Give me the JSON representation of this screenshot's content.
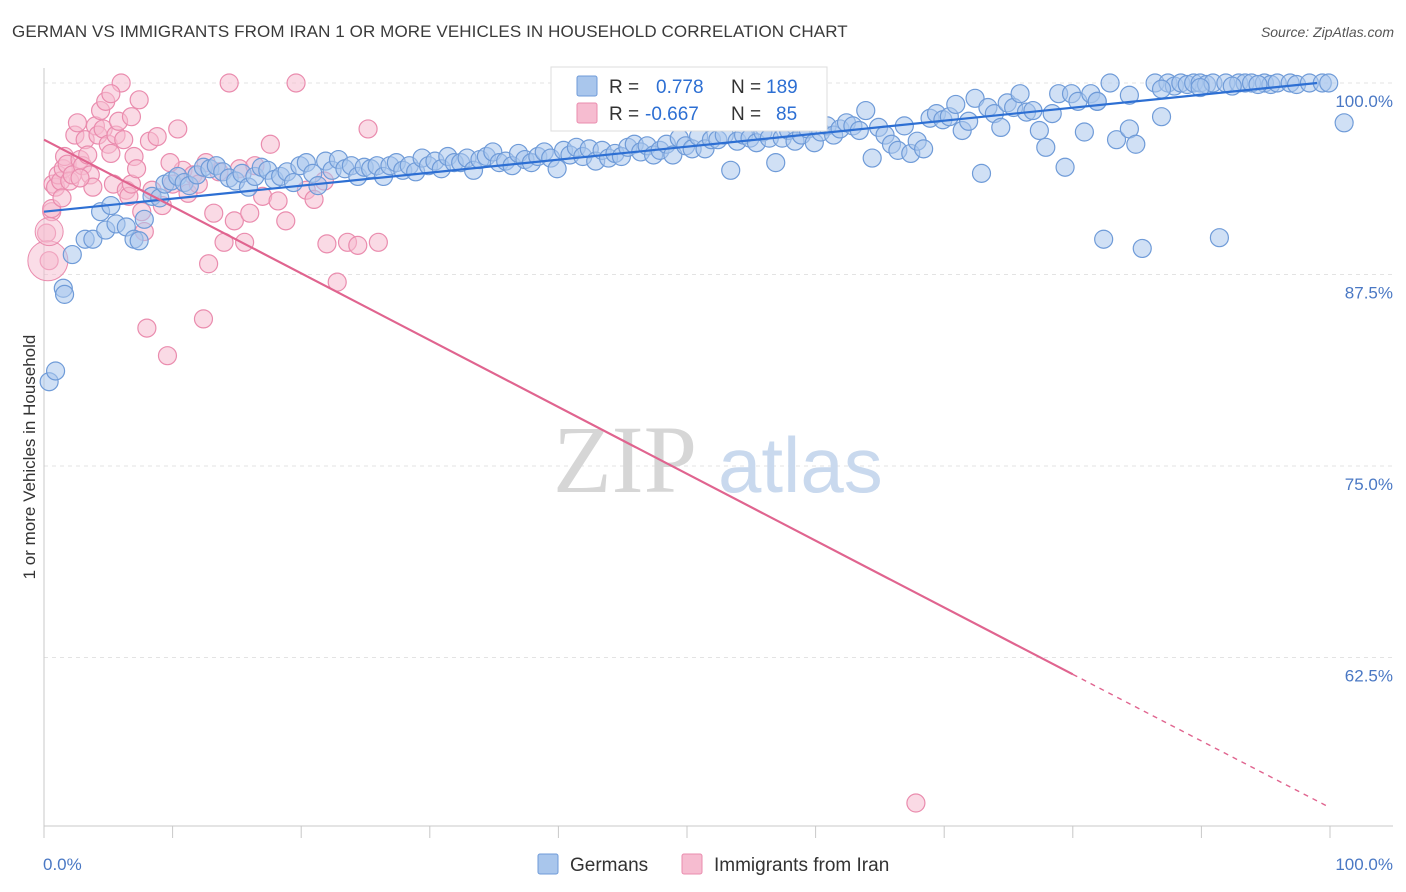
{
  "header": {
    "title": "GERMAN VS IMMIGRANTS FROM IRAN 1 OR MORE VEHICLES IN HOUSEHOLD CORRELATION CHART",
    "source": "Source: ZipAtlas.com"
  },
  "watermark": {
    "zip": "ZIP",
    "atlas": "atlas"
  },
  "legend_box": {
    "rows": [
      {
        "r_label": "R =",
        "r_value": "0.778",
        "n_label": "N =",
        "n_value": "189"
      },
      {
        "r_label": "R =",
        "r_value": "-0.667",
        "n_label": "N =",
        "n_value": "85"
      }
    ]
  },
  "colors": {
    "blue_fill": "#a9c6ec",
    "blue_stroke": "#6f9bd8",
    "blue_line": "#2d6fd3",
    "pink_fill": "#f6bcd0",
    "pink_stroke": "#ea8cae",
    "pink_line": "#e0648f",
    "axis_text": "#4a78c4",
    "grid": "#e3e3e3"
  },
  "chart_data": {
    "type": "scatter",
    "title": "GERMAN VS IMMIGRANTS FROM IRAN 1 OR MORE VEHICLES IN HOUSEHOLD CORRELATION CHART",
    "xlabel": "",
    "ylabel": "1 or more Vehicles in Household",
    "xlim": [
      0,
      100
    ],
    "ylim": [
      51.5,
      101.5
    ],
    "x_tick_labels": [
      "0.0%",
      "100.0%"
    ],
    "y_ticks": [
      100,
      87.5,
      75,
      62.5
    ],
    "y_tick_labels": [
      "100.0%",
      "87.5%",
      "75.0%",
      "62.5%"
    ],
    "grid": true,
    "legend": "bottom-center",
    "series": [
      {
        "name": "Germans",
        "r": 0.778,
        "n": 189,
        "trend": {
          "x": [
            0,
            99
          ],
          "y": [
            91.6,
            100.0
          ]
        },
        "points": [
          [
            0.4,
            80.5
          ],
          [
            0.9,
            81.2
          ],
          [
            1.5,
            86.6
          ],
          [
            1.6,
            86.2
          ],
          [
            2.2,
            88.8
          ],
          [
            3.2,
            89.8
          ],
          [
            3.8,
            89.8
          ],
          [
            4.4,
            91.6
          ],
          [
            4.8,
            90.4
          ],
          [
            5.2,
            92.0
          ],
          [
            5.6,
            90.8
          ],
          [
            6.4,
            90.6
          ],
          [
            7.0,
            89.8
          ],
          [
            7.4,
            89.7
          ],
          [
            7.8,
            91.1
          ],
          [
            8.4,
            92.6
          ],
          [
            9.0,
            92.5
          ],
          [
            9.4,
            93.4
          ],
          [
            9.9,
            93.6
          ],
          [
            10.4,
            93.9
          ],
          [
            10.9,
            93.5
          ],
          [
            11.3,
            93.3
          ],
          [
            11.9,
            94.0
          ],
          [
            12.4,
            94.5
          ],
          [
            12.9,
            94.4
          ],
          [
            13.4,
            94.6
          ],
          [
            13.9,
            94.2
          ],
          [
            14.4,
            93.8
          ],
          [
            14.9,
            93.6
          ],
          [
            15.4,
            94.1
          ],
          [
            15.9,
            93.2
          ],
          [
            16.4,
            93.9
          ],
          [
            16.9,
            94.5
          ],
          [
            17.4,
            94.3
          ],
          [
            17.9,
            93.7
          ],
          [
            18.4,
            93.9
          ],
          [
            18.9,
            94.2
          ],
          [
            19.4,
            93.5
          ],
          [
            19.9,
            94.6
          ],
          [
            20.4,
            94.8
          ],
          [
            20.9,
            94.1
          ],
          [
            21.3,
            93.3
          ],
          [
            21.9,
            94.9
          ],
          [
            22.4,
            94.3
          ],
          [
            22.9,
            95.0
          ],
          [
            23.4,
            94.4
          ],
          [
            23.9,
            94.6
          ],
          [
            24.4,
            93.9
          ],
          [
            24.9,
            94.5
          ],
          [
            25.4,
            94.4
          ],
          [
            25.9,
            94.6
          ],
          [
            26.4,
            93.9
          ],
          [
            26.9,
            94.6
          ],
          [
            27.4,
            94.8
          ],
          [
            27.9,
            94.3
          ],
          [
            28.4,
            94.6
          ],
          [
            28.9,
            94.2
          ],
          [
            29.4,
            95.1
          ],
          [
            29.9,
            94.6
          ],
          [
            30.4,
            94.9
          ],
          [
            30.9,
            94.4
          ],
          [
            31.4,
            95.2
          ],
          [
            31.9,
            94.8
          ],
          [
            32.4,
            94.8
          ],
          [
            32.9,
            95.1
          ],
          [
            33.4,
            94.3
          ],
          [
            33.9,
            95.0
          ],
          [
            34.4,
            95.2
          ],
          [
            34.9,
            95.5
          ],
          [
            35.4,
            94.8
          ],
          [
            35.9,
            94.9
          ],
          [
            36.4,
            94.6
          ],
          [
            36.9,
            95.4
          ],
          [
            37.4,
            95.0
          ],
          [
            37.9,
            94.8
          ],
          [
            38.4,
            95.2
          ],
          [
            38.9,
            95.5
          ],
          [
            39.4,
            95.1
          ],
          [
            39.9,
            94.4
          ],
          [
            40.4,
            95.6
          ],
          [
            40.9,
            95.3
          ],
          [
            41.4,
            95.8
          ],
          [
            41.9,
            95.2
          ],
          [
            42.4,
            95.7
          ],
          [
            42.9,
            94.9
          ],
          [
            43.4,
            95.6
          ],
          [
            43.9,
            95.1
          ],
          [
            44.4,
            95.4
          ],
          [
            44.9,
            95.2
          ],
          [
            45.4,
            95.8
          ],
          [
            45.9,
            96.0
          ],
          [
            46.4,
            95.5
          ],
          [
            46.9,
            95.9
          ],
          [
            47.4,
            95.3
          ],
          [
            47.9,
            95.6
          ],
          [
            48.4,
            96.0
          ],
          [
            48.9,
            95.3
          ],
          [
            49.4,
            96.4
          ],
          [
            49.9,
            95.9
          ],
          [
            50.4,
            95.7
          ],
          [
            50.9,
            96.5
          ],
          [
            51.4,
            95.7
          ],
          [
            51.9,
            96.3
          ],
          [
            52.4,
            96.3
          ],
          [
            52.9,
            96.6
          ],
          [
            53.4,
            94.3
          ],
          [
            53.9,
            96.2
          ],
          [
            54.4,
            96.6
          ],
          [
            54.9,
            96.4
          ],
          [
            55.4,
            96.1
          ],
          [
            55.9,
            96.8
          ],
          [
            56.4,
            96.4
          ],
          [
            56.9,
            94.8
          ],
          [
            57.4,
            96.4
          ],
          [
            57.9,
            96.9
          ],
          [
            58.4,
            96.2
          ],
          [
            58.9,
            96.6
          ],
          [
            59.4,
            97.0
          ],
          [
            59.9,
            96.1
          ],
          [
            60.4,
            96.8
          ],
          [
            60.9,
            97.2
          ],
          [
            61.4,
            96.6
          ],
          [
            61.9,
            97.0
          ],
          [
            62.4,
            97.4
          ],
          [
            62.9,
            97.2
          ],
          [
            63.4,
            96.9
          ],
          [
            63.9,
            98.2
          ],
          [
            64.4,
            95.1
          ],
          [
            64.9,
            97.1
          ],
          [
            65.4,
            96.6
          ],
          [
            65.9,
            96.0
          ],
          [
            66.4,
            95.6
          ],
          [
            66.9,
            97.2
          ],
          [
            67.4,
            95.4
          ],
          [
            67.9,
            96.2
          ],
          [
            68.4,
            95.7
          ],
          [
            68.9,
            97.7
          ],
          [
            69.4,
            98.0
          ],
          [
            69.9,
            97.6
          ],
          [
            70.4,
            97.8
          ],
          [
            70.9,
            98.6
          ],
          [
            71.4,
            96.9
          ],
          [
            71.9,
            97.5
          ],
          [
            72.4,
            99.0
          ],
          [
            72.9,
            94.1
          ],
          [
            73.4,
            98.4
          ],
          [
            73.9,
            98.0
          ],
          [
            74.4,
            97.1
          ],
          [
            74.9,
            98.7
          ],
          [
            75.4,
            98.4
          ],
          [
            75.9,
            99.3
          ],
          [
            76.4,
            98.1
          ],
          [
            76.9,
            98.2
          ],
          [
            77.4,
            96.9
          ],
          [
            77.9,
            95.8
          ],
          [
            78.4,
            98.0
          ],
          [
            78.9,
            99.3
          ],
          [
            79.4,
            94.5
          ],
          [
            79.9,
            99.3
          ],
          [
            80.4,
            98.8
          ],
          [
            80.9,
            96.8
          ],
          [
            81.4,
            99.3
          ],
          [
            81.9,
            98.8
          ],
          [
            82.4,
            89.8
          ],
          [
            82.9,
            100.0
          ],
          [
            83.4,
            96.3
          ],
          [
            84.4,
            97.0
          ],
          [
            84.9,
            96.0
          ],
          [
            85.4,
            89.2
          ],
          [
            86.4,
            100.0
          ],
          [
            86.9,
            97.8
          ],
          [
            87.4,
            100.0
          ],
          [
            87.9,
            99.8
          ],
          [
            88.4,
            100.0
          ],
          [
            88.9,
            99.9
          ],
          [
            89.4,
            100.0
          ],
          [
            89.9,
            100.0
          ],
          [
            90.4,
            99.9
          ],
          [
            90.9,
            100.0
          ],
          [
            91.4,
            89.9
          ],
          [
            91.9,
            100.0
          ],
          [
            92.9,
            100.0
          ],
          [
            93.4,
            100.0
          ],
          [
            93.9,
            100.0
          ],
          [
            94.9,
            100.0
          ],
          [
            95.4,
            99.9
          ],
          [
            95.9,
            100.0
          ],
          [
            96.9,
            100.0
          ],
          [
            97.4,
            99.9
          ],
          [
            98.4,
            100.0
          ],
          [
            99.4,
            100.0
          ],
          [
            99.9,
            100.0
          ],
          [
            101.1,
            97.4
          ],
          [
            86.9,
            99.6
          ],
          [
            84.4,
            99.2
          ],
          [
            89.9,
            99.7
          ],
          [
            92.4,
            99.8
          ],
          [
            94.4,
            99.9
          ],
          [
            81.9,
            98.8
          ]
        ]
      },
      {
        "name": "Immigrants from Iran",
        "r": -0.667,
        "n": 85,
        "trend": {
          "x": [
            0,
            80
          ],
          "y": [
            96.3,
            61.4
          ]
        },
        "trend_dashed": {
          "x": [
            80,
            100
          ],
          "y": [
            61.4,
            52.7
          ]
        },
        "points": [
          [
            0.2,
            90.2
          ],
          [
            0.4,
            88.4
          ],
          [
            0.6,
            91.6
          ],
          [
            0.7,
            93.4
          ],
          [
            0.9,
            93.2
          ],
          [
            1.1,
            94.0
          ],
          [
            1.3,
            93.6
          ],
          [
            1.5,
            94.4
          ],
          [
            1.6,
            95.2
          ],
          [
            1.8,
            94.7
          ],
          [
            2.0,
            93.6
          ],
          [
            2.2,
            94.0
          ],
          [
            2.4,
            96.6
          ],
          [
            2.6,
            97.4
          ],
          [
            2.8,
            95.0
          ],
          [
            3.0,
            94.6
          ],
          [
            3.2,
            96.3
          ],
          [
            3.4,
            95.3
          ],
          [
            3.6,
            94.0
          ],
          [
            3.8,
            93.2
          ],
          [
            4.0,
            97.2
          ],
          [
            4.2,
            96.6
          ],
          [
            4.4,
            98.2
          ],
          [
            4.6,
            97.0
          ],
          [
            4.8,
            98.8
          ],
          [
            5.0,
            96.0
          ],
          [
            5.2,
            95.4
          ],
          [
            5.4,
            93.4
          ],
          [
            5.6,
            96.6
          ],
          [
            5.8,
            97.5
          ],
          [
            6.0,
            100.0
          ],
          [
            6.2,
            96.3
          ],
          [
            6.4,
            93.0
          ],
          [
            6.6,
            92.6
          ],
          [
            6.8,
            93.4
          ],
          [
            7.0,
            95.2
          ],
          [
            7.2,
            94.4
          ],
          [
            7.4,
            98.9
          ],
          [
            7.6,
            91.6
          ],
          [
            7.8,
            90.3
          ],
          [
            8.0,
            84.0
          ],
          [
            8.2,
            96.2
          ],
          [
            8.4,
            93.0
          ],
          [
            8.8,
            96.5
          ],
          [
            9.2,
            92.0
          ],
          [
            9.6,
            82.2
          ],
          [
            10.0,
            93.4
          ],
          [
            10.4,
            97.0
          ],
          [
            10.8,
            94.3
          ],
          [
            11.2,
            92.8
          ],
          [
            11.6,
            94.0
          ],
          [
            12.0,
            93.4
          ],
          [
            12.4,
            84.6
          ],
          [
            12.8,
            88.2
          ],
          [
            13.2,
            91.5
          ],
          [
            13.6,
            94.2
          ],
          [
            14.0,
            89.6
          ],
          [
            14.4,
            100.0
          ],
          [
            14.8,
            91.0
          ],
          [
            15.2,
            94.4
          ],
          [
            15.6,
            89.6
          ],
          [
            16.0,
            91.5
          ],
          [
            16.4,
            94.6
          ],
          [
            17.0,
            92.6
          ],
          [
            17.6,
            96.0
          ],
          [
            18.2,
            92.3
          ],
          [
            18.8,
            91.0
          ],
          [
            19.6,
            100.0
          ],
          [
            20.4,
            93.0
          ],
          [
            21.0,
            92.4
          ],
          [
            22.0,
            89.5
          ],
          [
            22.8,
            87.0
          ],
          [
            23.6,
            89.6
          ],
          [
            24.4,
            89.4
          ],
          [
            25.2,
            97.0
          ],
          [
            26.0,
            89.6
          ],
          [
            0.6,
            91.8
          ],
          [
            1.4,
            92.5
          ],
          [
            2.8,
            93.8
          ],
          [
            5.2,
            99.3
          ],
          [
            6.8,
            97.8
          ],
          [
            9.8,
            94.8
          ],
          [
            12.6,
            94.8
          ],
          [
            21.8,
            93.6
          ],
          [
            67.8,
            53.0
          ]
        ]
      }
    ]
  },
  "bottom_legend": {
    "items": [
      {
        "label": "Germans"
      },
      {
        "label": "Immigrants from Iran"
      }
    ]
  }
}
